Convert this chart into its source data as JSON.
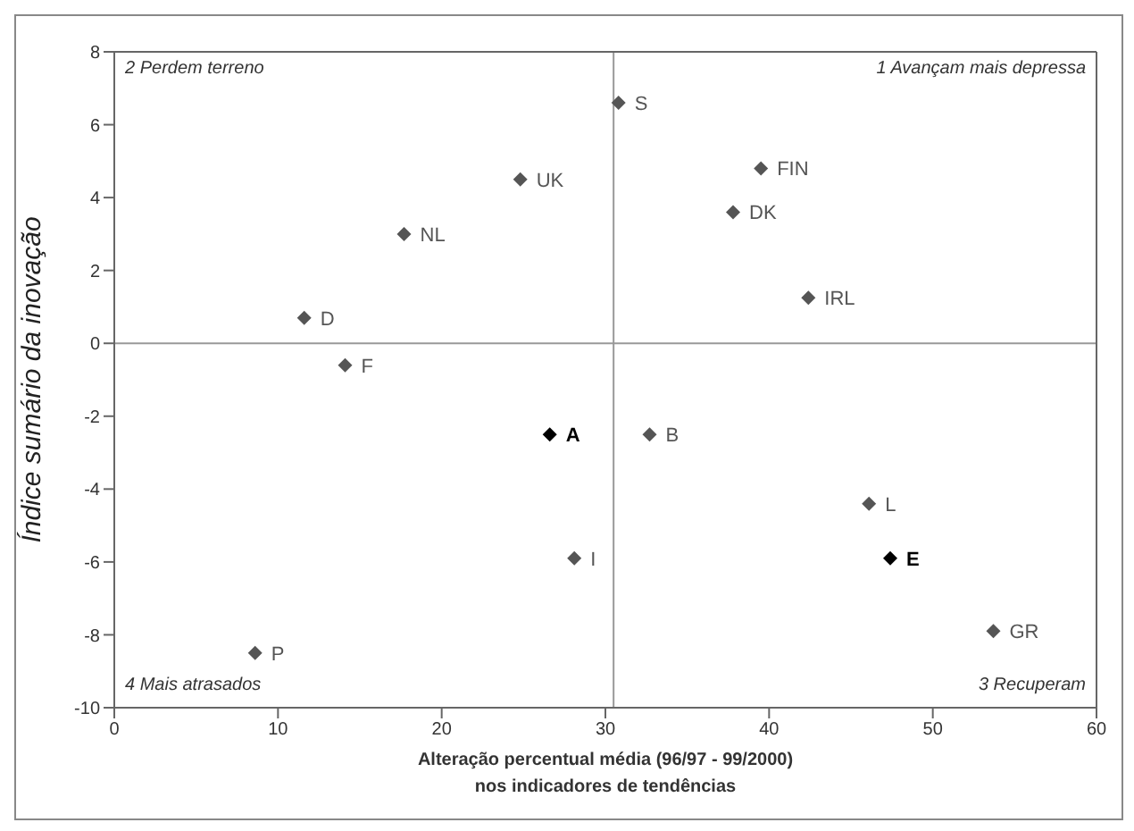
{
  "chart_data": {
    "type": "scatter",
    "xlabel": "Alteração percentual média (96/97 - 99/2000)\nnos indicadores de tendências",
    "ylabel": "Índice sumário da inovação",
    "x": [
      30.8,
      24.8,
      17.7,
      11.6,
      14.1,
      39.5,
      37.8,
      42.4,
      26.6,
      32.7,
      28.1,
      46.1,
      47.4,
      53.7,
      8.6
    ],
    "series": [
      {
        "values": [
          6.6,
          4.5,
          3.0,
          0.7,
          -0.6,
          4.8,
          3.6,
          1.25,
          -2.5,
          -2.5,
          -5.9,
          -4.4,
          -5.9,
          -7.9,
          -8.5
        ],
        "colors": [
          "#555555",
          "#555555",
          "#555555",
          "#555555",
          "#555555",
          "#555555",
          "#555555",
          "#555555",
          "#000000",
          "#555555",
          "#555555",
          "#555555",
          "#000000",
          "#555555",
          "#555555"
        ]
      }
    ],
    "xlim": [
      0,
      60
    ],
    "xticks": [
      0,
      10,
      20,
      30,
      40,
      50,
      60
    ],
    "ylim": [
      -10,
      8
    ],
    "yticks": [
      -10,
      -8,
      -6,
      -4,
      -2,
      0,
      2,
      4,
      6,
      8
    ],
    "grid": false,
    "legend": false,
    "marker": "diamond",
    "ref_lines": [
      {
        "axis": "x",
        "value": 30.5,
        "color": "#999999"
      },
      {
        "axis": "y",
        "value": 0,
        "color": "#999999"
      }
    ],
    "annotations": [
      "2 Perdem terreno",
      "1 Avançam mais depressa",
      "4 Mais atrasados",
      "3 Recuperam",
      {
        "text": "S",
        "x": 30.8,
        "y": 6.6
      },
      {
        "text": "UK",
        "x": 24.8,
        "y": 4.5
      },
      {
        "text": "NL",
        "x": 17.7,
        "y": 3.0
      },
      {
        "text": "D",
        "x": 11.6,
        "y": 0.7
      },
      {
        "text": "F",
        "x": 14.1,
        "y": -0.6
      },
      {
        "text": "FIN",
        "x": 39.5,
        "y": 4.8
      },
      {
        "text": "DK",
        "x": 37.8,
        "y": 3.6
      },
      {
        "text": "IRL",
        "x": 42.4,
        "y": 1.25
      },
      {
        "text": "A",
        "x": 26.6,
        "y": -2.5
      },
      {
        "text": "B",
        "x": 32.7,
        "y": -2.5
      },
      {
        "text": "I",
        "x": 28.1,
        "y": -5.9
      },
      {
        "text": "L",
        "x": 46.1,
        "y": -4.4
      },
      {
        "text": "E",
        "x": 47.4,
        "y": -5.9
      },
      {
        "text": "GR",
        "x": 53.7,
        "y": -7.9
      },
      {
        "text": "P",
        "x": 8.6,
        "y": -8.5
      }
    ]
  }
}
